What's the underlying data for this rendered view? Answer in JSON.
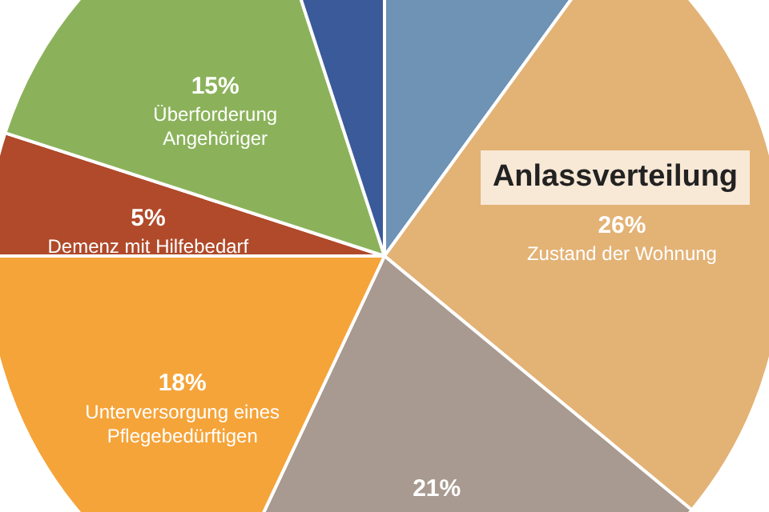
{
  "chart_data": {
    "type": "pie",
    "title": "Anlassverteilung",
    "categories": [
      null,
      "Zustand der Wohnung",
      null,
      "Unterversorgung eines Pflegebedürftigen",
      "Demenz mit Hilfebedarf",
      "Überforderung Angehöriger",
      null
    ],
    "values": [
      10,
      26,
      21,
      18,
      5,
      15,
      5
    ],
    "value_labels": [
      null,
      "26%",
      "21%",
      "18%",
      "5%",
      "15%",
      null
    ],
    "colors": [
      "#6f93b5",
      "#e3b275",
      "#a89a90",
      "#f5a43a",
      "#b04a2a",
      "#8bb25a",
      "#3a5a9a"
    ]
  }
}
